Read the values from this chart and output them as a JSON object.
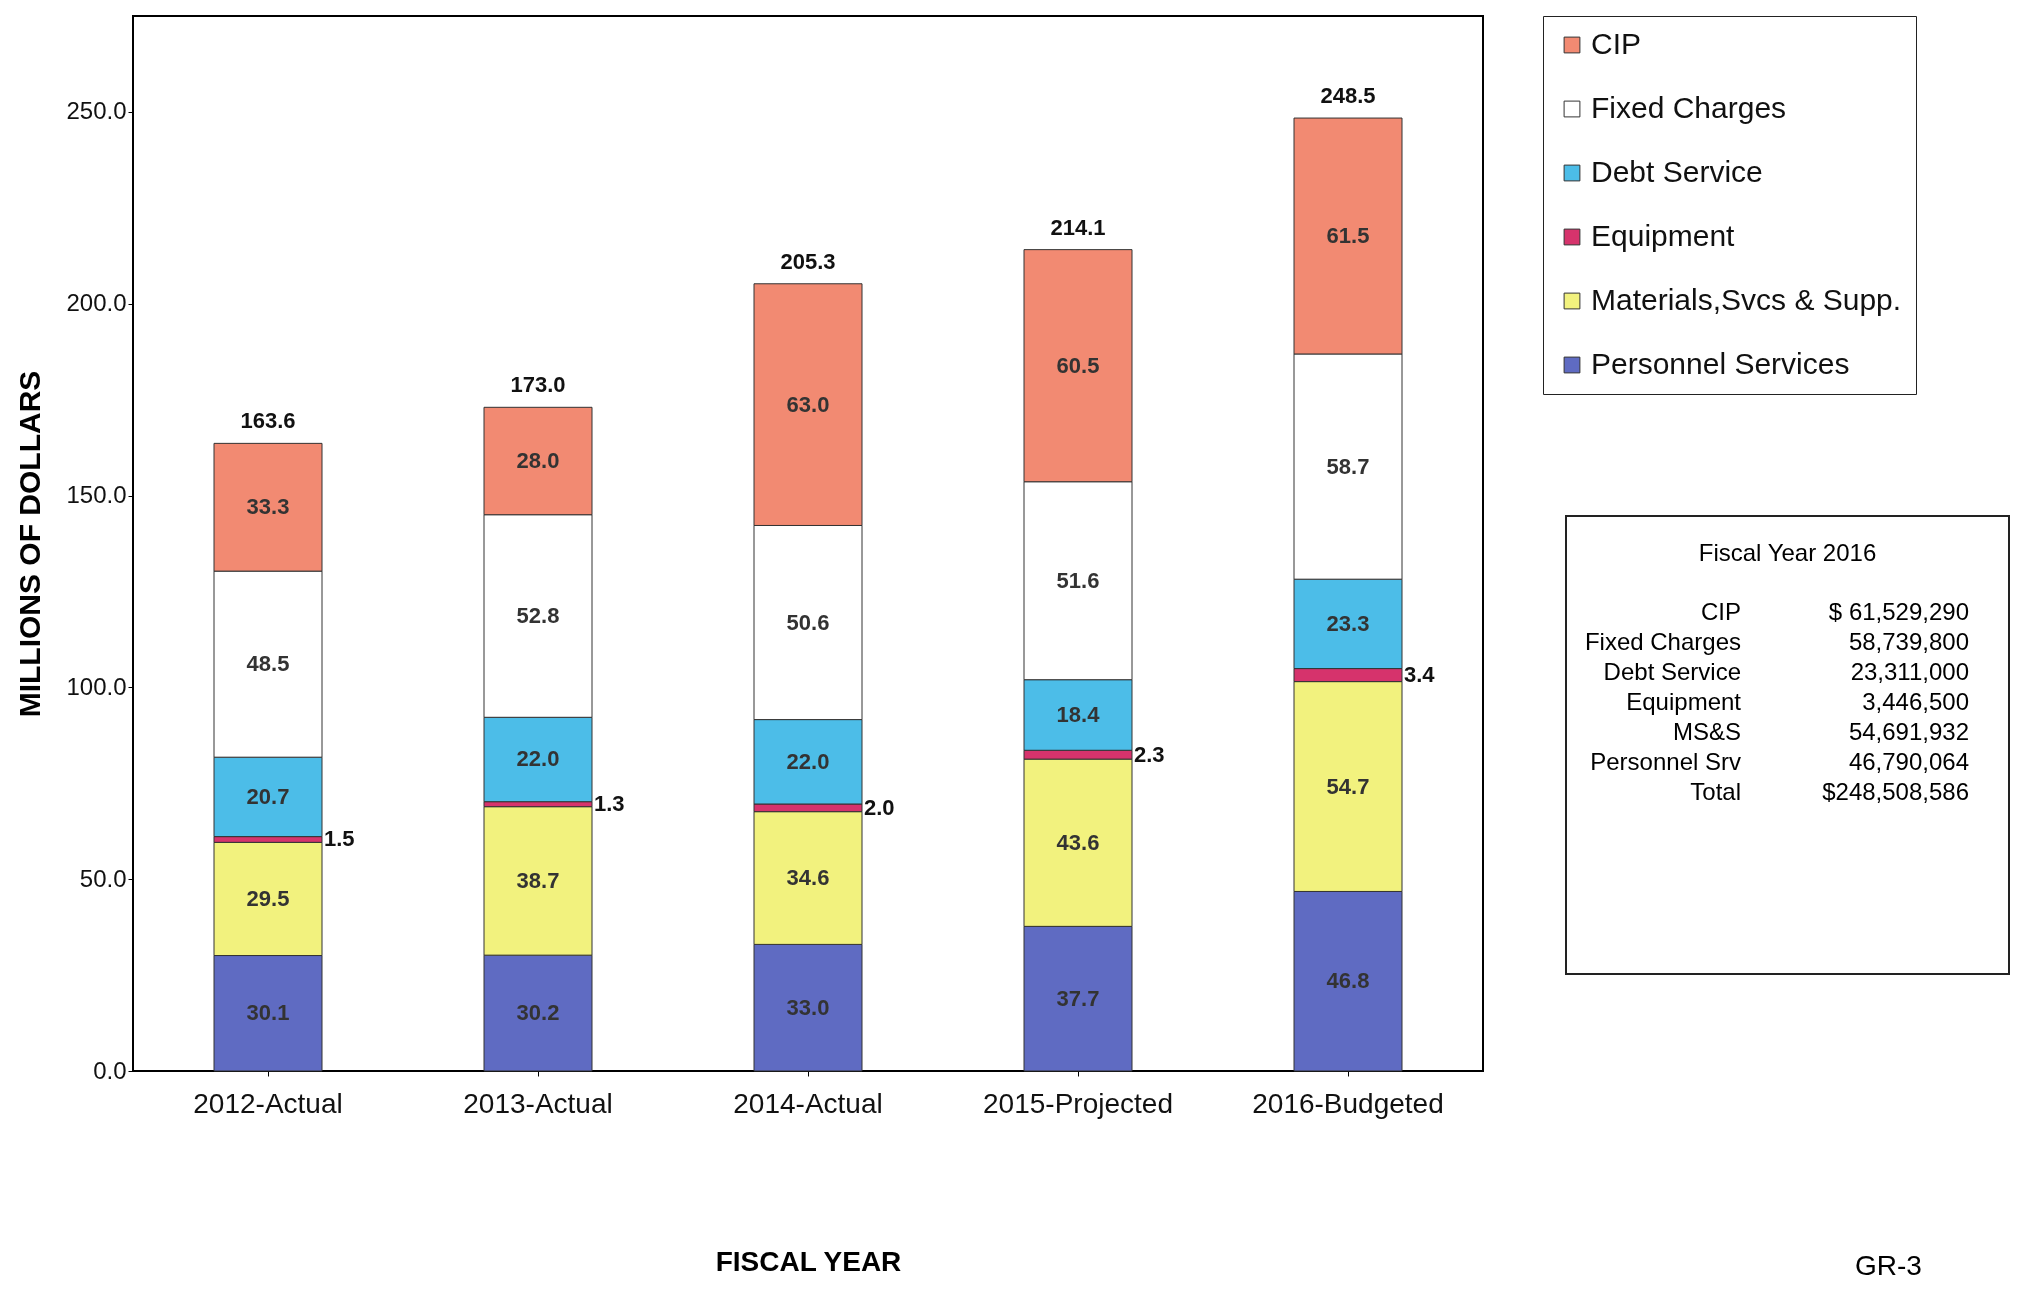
{
  "chart_data": {
    "type": "bar",
    "stacked": true,
    "xlabel": "FISCAL YEAR",
    "ylabel": "MILLIONS OF DOLLARS",
    "categories": [
      "2012-Actual",
      "2013-Actual",
      "2014-Actual",
      "2015-Projected",
      "2016-Budgeted"
    ],
    "series": [
      {
        "name": "Personnel Services",
        "color": "#5f6bc2",
        "values": [
          30.1,
          30.2,
          33.0,
          37.7,
          46.8
        ],
        "value_labels": [
          "30.1",
          "30.2",
          "33.0",
          "37.7",
          "46.8"
        ]
      },
      {
        "name": "Materials,Svcs & Supp.",
        "color": "#f2f27e",
        "values": [
          29.5,
          38.7,
          34.6,
          43.6,
          54.7
        ],
        "value_labels": [
          "29.5",
          "38.7",
          "34.6",
          "43.6",
          "54.7"
        ]
      },
      {
        "name": "Equipment",
        "color": "#d6336c",
        "values": [
          1.5,
          1.3,
          2.0,
          2.3,
          3.4
        ],
        "value_labels": [
          "1.5",
          "1.3",
          "2.0",
          "2.3",
          "3.4"
        ]
      },
      {
        "name": "Debt Service",
        "color": "#4cbde8",
        "values": [
          20.7,
          22.0,
          22.0,
          18.4,
          23.3
        ],
        "value_labels": [
          "20.7",
          "22.0",
          "22.0",
          "18.4",
          "23.3"
        ]
      },
      {
        "name": "Fixed Charges",
        "color": "#ffffff",
        "values": [
          48.5,
          52.8,
          50.6,
          51.6,
          58.7
        ],
        "value_labels": [
          "48.5",
          "52.8",
          "50.6",
          "51.6",
          "58.7"
        ]
      },
      {
        "name": "CIP",
        "color": "#f28a72",
        "values": [
          33.3,
          28.0,
          63.0,
          60.5,
          61.5
        ],
        "value_labels": [
          "33.3",
          "28.0",
          "63.0",
          "60.5",
          "61.5"
        ]
      }
    ],
    "totals": [
      "163.6",
      "173.0",
      "205.3",
      "214.1",
      "248.5"
    ],
    "ylim": [
      0,
      275
    ],
    "yticks": [
      {
        "value": 0,
        "label": "0.0"
      },
      {
        "value": 50,
        "label": "50.0"
      },
      {
        "value": 100,
        "label": "100.0"
      },
      {
        "value": 150,
        "label": "150.0"
      },
      {
        "value": 200,
        "label": "200.0"
      },
      {
        "value": 250,
        "label": "250.0"
      }
    ],
    "legend": "top right",
    "annotations": [
      "Fiscal Year 2016",
      "CIP\t$  61,529,290",
      "Fixed Charges\t58,739,800",
      "Debt Service\t23,311,000",
      "Equipment\t3,446,500",
      "MS&S\t54,691,932",
      "Personnel Srv\t46,790,064",
      "Total\t$248,508,586",
      "GR-3"
    ]
  }
}
